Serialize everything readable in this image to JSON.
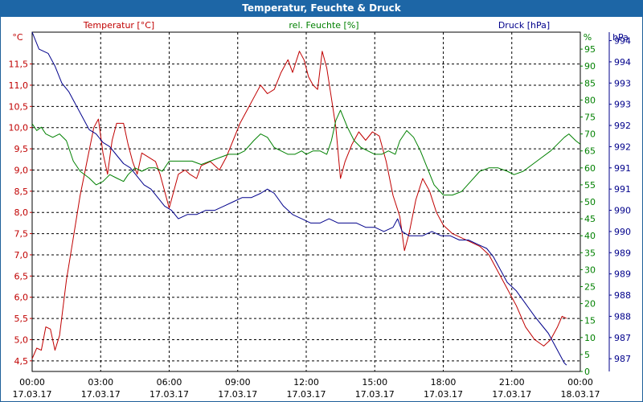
{
  "chart_data": {
    "type": "line",
    "title": "Temperatur, Feuchte & Druck",
    "x_ticks": [
      {
        "t": 0,
        "time": "00:00",
        "date": "17.03.17"
      },
      {
        "t": 3,
        "time": "03:00",
        "date": "17.03.17"
      },
      {
        "t": 6,
        "time": "06:00",
        "date": "17.03.17"
      },
      {
        "t": 9,
        "time": "09:00",
        "date": "17.03.17"
      },
      {
        "t": 12,
        "time": "12:00",
        "date": "17.03.17"
      },
      {
        "t": 15,
        "time": "15:00",
        "date": "17.03.17"
      },
      {
        "t": 18,
        "time": "18:00",
        "date": "17.03.17"
      },
      {
        "t": 21,
        "time": "21:00",
        "date": "17.03.17"
      },
      {
        "t": 24,
        "time": "00:00",
        "date": "18.03.17"
      }
    ],
    "xlim": [
      0,
      24
    ],
    "axes": {
      "temperature": {
        "label": "Temperatur [°C]",
        "unit": "°C",
        "color": "#c00000",
        "ylim": [
          4.25,
          12.25
        ],
        "ticks": [
          "4,5",
          "5,0",
          "5,5",
          "6,0",
          "6,5",
          "7,0",
          "7,5",
          "8,0",
          "8,5",
          "9,0",
          "9,5",
          "10,0",
          "10,5",
          "11,0",
          "11,5"
        ]
      },
      "humidity": {
        "label": "rel. Feuchte [%]",
        "unit": "%",
        "color": "#008000",
        "ylim": [
          0,
          100
        ],
        "ticks": [
          "0",
          "5",
          "10",
          "15",
          "20",
          "25",
          "30",
          "35",
          "40",
          "45",
          "50",
          "55",
          "60",
          "65",
          "70",
          "75",
          "80",
          "85",
          "90",
          "95"
        ]
      },
      "pressure": {
        "label": "Druck [hPa]",
        "unit": "hPa",
        "color": "#00008b",
        "ylim": [
          986.7,
          994.7
        ],
        "ticks": [
          "987",
          "987",
          "988",
          "988",
          "989",
          "989",
          "990",
          "990",
          "991",
          "991",
          "992",
          "992",
          "993",
          "993",
          "994",
          "994"
        ],
        "tick_values": [
          987.0,
          987.5,
          988.0,
          988.5,
          989.0,
          989.5,
          990.0,
          990.5,
          991.0,
          991.5,
          992.0,
          992.5,
          993.0,
          993.5,
          994.0,
          994.5
        ]
      }
    },
    "series": [
      {
        "name": "Temperatur [°C]",
        "axis": "temperature",
        "color": "#c00000",
        "points": [
          [
            0,
            4.55
          ],
          [
            0.2,
            4.8
          ],
          [
            0.4,
            4.75
          ],
          [
            0.6,
            5.3
          ],
          [
            0.8,
            5.25
          ],
          [
            1.0,
            4.75
          ],
          [
            1.2,
            5.1
          ],
          [
            1.5,
            6.4
          ],
          [
            1.8,
            7.4
          ],
          [
            2.1,
            8.4
          ],
          [
            2.4,
            9.2
          ],
          [
            2.7,
            10.0
          ],
          [
            2.9,
            10.2
          ],
          [
            3.1,
            9.4
          ],
          [
            3.3,
            8.9
          ],
          [
            3.5,
            9.7
          ],
          [
            3.7,
            10.1
          ],
          [
            4.0,
            10.1
          ],
          [
            4.2,
            9.6
          ],
          [
            4.4,
            9.2
          ],
          [
            4.6,
            8.9
          ],
          [
            4.8,
            9.4
          ],
          [
            5.1,
            9.3
          ],
          [
            5.4,
            9.2
          ],
          [
            5.6,
            8.9
          ],
          [
            5.8,
            8.5
          ],
          [
            6.0,
            8.1
          ],
          [
            6.2,
            8.5
          ],
          [
            6.4,
            8.9
          ],
          [
            6.7,
            9.0
          ],
          [
            6.9,
            8.9
          ],
          [
            7.2,
            8.8
          ],
          [
            7.4,
            9.1
          ],
          [
            7.8,
            9.2
          ],
          [
            8.2,
            9.0
          ],
          [
            8.5,
            9.3
          ],
          [
            8.8,
            9.7
          ],
          [
            9.1,
            10.1
          ],
          [
            9.4,
            10.4
          ],
          [
            9.7,
            10.7
          ],
          [
            10.0,
            11.0
          ],
          [
            10.3,
            10.8
          ],
          [
            10.6,
            10.9
          ],
          [
            10.9,
            11.3
          ],
          [
            11.2,
            11.6
          ],
          [
            11.4,
            11.3
          ],
          [
            11.7,
            11.8
          ],
          [
            11.9,
            11.6
          ],
          [
            12.1,
            11.2
          ],
          [
            12.3,
            11.0
          ],
          [
            12.5,
            10.9
          ],
          [
            12.7,
            11.8
          ],
          [
            12.9,
            11.4
          ],
          [
            13.1,
            10.7
          ],
          [
            13.3,
            10.0
          ],
          [
            13.5,
            8.8
          ],
          [
            13.7,
            9.2
          ],
          [
            14.0,
            9.6
          ],
          [
            14.3,
            9.9
          ],
          [
            14.6,
            9.7
          ],
          [
            14.9,
            9.9
          ],
          [
            15.2,
            9.8
          ],
          [
            15.5,
            9.2
          ],
          [
            15.8,
            8.4
          ],
          [
            16.1,
            7.9
          ],
          [
            16.3,
            7.1
          ],
          [
            16.5,
            7.5
          ],
          [
            16.8,
            8.3
          ],
          [
            17.1,
            8.8
          ],
          [
            17.4,
            8.5
          ],
          [
            17.7,
            8.0
          ],
          [
            18.0,
            7.7
          ],
          [
            18.4,
            7.5
          ],
          [
            18.8,
            7.4
          ],
          [
            19.2,
            7.3
          ],
          [
            19.6,
            7.2
          ],
          [
            20.0,
            7.0
          ],
          [
            20.4,
            6.6
          ],
          [
            20.8,
            6.2
          ],
          [
            21.2,
            5.8
          ],
          [
            21.6,
            5.3
          ],
          [
            22.0,
            5.0
          ],
          [
            22.4,
            4.85
          ],
          [
            22.7,
            5.0
          ],
          [
            23.0,
            5.3
          ],
          [
            23.2,
            5.55
          ],
          [
            23.4,
            5.5
          ]
        ]
      },
      {
        "name": "rel. Feuchte [%]",
        "axis": "humidity",
        "color": "#008000",
        "points": [
          [
            0,
            73
          ],
          [
            0.2,
            71
          ],
          [
            0.4,
            72
          ],
          [
            0.6,
            70
          ],
          [
            0.9,
            69
          ],
          [
            1.2,
            70
          ],
          [
            1.5,
            68
          ],
          [
            1.8,
            62
          ],
          [
            2.1,
            59
          ],
          [
            2.5,
            57
          ],
          [
            2.8,
            55
          ],
          [
            3.1,
            56
          ],
          [
            3.4,
            58
          ],
          [
            3.7,
            57
          ],
          [
            4.0,
            56
          ],
          [
            4.2,
            58
          ],
          [
            4.5,
            60
          ],
          [
            4.8,
            59
          ],
          [
            5.1,
            60
          ],
          [
            5.4,
            60
          ],
          [
            5.7,
            59
          ],
          [
            6.0,
            62
          ],
          [
            6.3,
            62
          ],
          [
            6.6,
            62
          ],
          [
            7.0,
            62
          ],
          [
            7.4,
            61
          ],
          [
            7.8,
            62
          ],
          [
            8.2,
            63
          ],
          [
            8.6,
            64
          ],
          [
            9.0,
            64
          ],
          [
            9.3,
            65
          ],
          [
            9.7,
            68
          ],
          [
            10.0,
            70
          ],
          [
            10.3,
            69
          ],
          [
            10.6,
            66
          ],
          [
            10.9,
            65
          ],
          [
            11.2,
            64
          ],
          [
            11.5,
            64
          ],
          [
            11.8,
            65
          ],
          [
            12.0,
            64
          ],
          [
            12.3,
            65
          ],
          [
            12.6,
            65
          ],
          [
            12.9,
            64
          ],
          [
            13.1,
            68
          ],
          [
            13.3,
            74
          ],
          [
            13.5,
            77
          ],
          [
            13.8,
            72
          ],
          [
            14.1,
            68
          ],
          [
            14.4,
            66
          ],
          [
            14.7,
            65
          ],
          [
            15.0,
            64
          ],
          [
            15.3,
            64
          ],
          [
            15.6,
            65
          ],
          [
            15.9,
            64
          ],
          [
            16.1,
            68
          ],
          [
            16.4,
            71
          ],
          [
            16.7,
            69
          ],
          [
            17.0,
            65
          ],
          [
            17.3,
            60
          ],
          [
            17.6,
            55
          ],
          [
            18.0,
            52
          ],
          [
            18.4,
            52
          ],
          [
            18.8,
            53
          ],
          [
            19.2,
            56
          ],
          [
            19.6,
            59
          ],
          [
            20.0,
            60
          ],
          [
            20.4,
            60
          ],
          [
            20.8,
            59
          ],
          [
            21.1,
            58
          ],
          [
            21.5,
            59
          ],
          [
            21.9,
            61
          ],
          [
            22.3,
            63
          ],
          [
            22.7,
            65
          ],
          [
            23.0,
            67
          ],
          [
            23.3,
            69
          ],
          [
            23.5,
            70
          ],
          [
            23.8,
            68
          ],
          [
            24.0,
            67
          ]
        ]
      },
      {
        "name": "Druck [hPa]",
        "axis": "pressure",
        "color": "#00008b",
        "points": [
          [
            0,
            994.7
          ],
          [
            0.3,
            994.3
          ],
          [
            0.7,
            994.2
          ],
          [
            1.0,
            993.9
          ],
          [
            1.3,
            993.5
          ],
          [
            1.6,
            993.3
          ],
          [
            1.9,
            993.0
          ],
          [
            2.2,
            992.7
          ],
          [
            2.5,
            992.4
          ],
          [
            2.8,
            992.3
          ],
          [
            3.1,
            992.1
          ],
          [
            3.4,
            992.0
          ],
          [
            3.7,
            991.8
          ],
          [
            4.0,
            991.6
          ],
          [
            4.3,
            991.5
          ],
          [
            4.6,
            991.3
          ],
          [
            4.9,
            991.1
          ],
          [
            5.2,
            991.0
          ],
          [
            5.5,
            990.8
          ],
          [
            5.8,
            990.6
          ],
          [
            6.1,
            990.5
          ],
          [
            6.4,
            990.3
          ],
          [
            6.8,
            990.4
          ],
          [
            7.2,
            990.4
          ],
          [
            7.6,
            990.5
          ],
          [
            8.0,
            990.5
          ],
          [
            8.4,
            990.6
          ],
          [
            8.8,
            990.7
          ],
          [
            9.2,
            990.8
          ],
          [
            9.6,
            990.8
          ],
          [
            10.0,
            990.9
          ],
          [
            10.3,
            991.0
          ],
          [
            10.6,
            990.9
          ],
          [
            11.0,
            990.6
          ],
          [
            11.4,
            990.4
          ],
          [
            11.8,
            990.3
          ],
          [
            12.2,
            990.2
          ],
          [
            12.6,
            990.2
          ],
          [
            13.0,
            990.3
          ],
          [
            13.4,
            990.2
          ],
          [
            13.8,
            990.2
          ],
          [
            14.2,
            990.2
          ],
          [
            14.6,
            990.1
          ],
          [
            15.0,
            990.1
          ],
          [
            15.4,
            990.0
          ],
          [
            15.8,
            990.1
          ],
          [
            16.0,
            990.3
          ],
          [
            16.2,
            990.0
          ],
          [
            16.5,
            989.9
          ],
          [
            16.8,
            989.9
          ],
          [
            17.1,
            989.9
          ],
          [
            17.5,
            990.0
          ],
          [
            17.9,
            989.9
          ],
          [
            18.3,
            989.9
          ],
          [
            18.7,
            989.8
          ],
          [
            19.1,
            989.8
          ],
          [
            19.5,
            989.7
          ],
          [
            19.9,
            989.6
          ],
          [
            20.2,
            989.4
          ],
          [
            20.5,
            989.1
          ],
          [
            20.8,
            988.8
          ],
          [
            21.2,
            988.6
          ],
          [
            21.6,
            988.3
          ],
          [
            22.0,
            988.0
          ],
          [
            22.3,
            987.8
          ],
          [
            22.6,
            987.6
          ],
          [
            23.0,
            987.2
          ],
          [
            23.3,
            986.9
          ],
          [
            23.4,
            986.85
          ]
        ]
      }
    ],
    "grid": true
  }
}
